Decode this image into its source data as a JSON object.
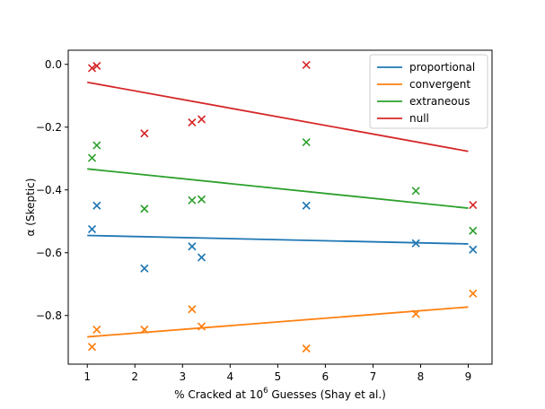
{
  "chart_data": {
    "type": "scatter",
    "xlabel_prefix": "% Cracked at 10",
    "xlabel_sup": "6",
    "xlabel_suffix": " Guesses (Shay et al.)",
    "ylabel": "α (Skeptic)",
    "xlim": [
      0.6,
      9.5
    ],
    "ylim": [
      -0.955,
      0.045
    ],
    "xticks": [
      1,
      2,
      3,
      4,
      5,
      6,
      7,
      8,
      9
    ],
    "yticks": [
      0.0,
      -0.2,
      -0.4,
      -0.6,
      -0.8
    ],
    "ytick_labels": [
      "0.0",
      "−0.2",
      "−0.4",
      "−0.6",
      "−0.8"
    ],
    "grid": false,
    "legend_position": "top-right",
    "series": [
      {
        "name": "proportional",
        "color": "#1f77b4",
        "x": [
          1.1,
          1.2,
          2.2,
          3.2,
          3.4,
          5.6,
          7.9,
          9.1
        ],
        "y": [
          -0.525,
          -0.45,
          -0.65,
          -0.58,
          -0.615,
          -0.45,
          -0.57,
          -0.59
        ],
        "fit": [
          [
            1.0,
            -0.545
          ],
          [
            9.0,
            -0.572
          ]
        ]
      },
      {
        "name": "convergent",
        "color": "#ff7f0e",
        "x": [
          1.1,
          1.2,
          2.2,
          3.2,
          3.4,
          5.6,
          7.9,
          9.1
        ],
        "y": [
          -0.9,
          -0.845,
          -0.845,
          -0.78,
          -0.835,
          -0.905,
          -0.795,
          -0.73
        ],
        "fit": [
          [
            1.0,
            -0.868
          ],
          [
            9.0,
            -0.773
          ]
        ]
      },
      {
        "name": "extraneous",
        "color": "#2ca02c",
        "x": [
          1.1,
          1.2,
          2.2,
          3.2,
          3.4,
          5.6,
          7.9,
          9.1
        ],
        "y": [
          -0.298,
          -0.258,
          -0.46,
          -0.433,
          -0.43,
          -0.248,
          -0.403,
          -0.53
        ],
        "fit": [
          [
            1.0,
            -0.333
          ],
          [
            9.0,
            -0.458
          ]
        ]
      },
      {
        "name": "null",
        "color": "#d62728",
        "x": [
          1.1,
          1.2,
          2.2,
          3.2,
          3.4,
          5.6,
          9.1
        ],
        "y": [
          -0.012,
          -0.005,
          -0.22,
          -0.185,
          -0.175,
          -0.002,
          -0.448
        ],
        "fit": [
          [
            1.0,
            -0.057
          ],
          [
            9.0,
            -0.277
          ]
        ]
      }
    ]
  }
}
